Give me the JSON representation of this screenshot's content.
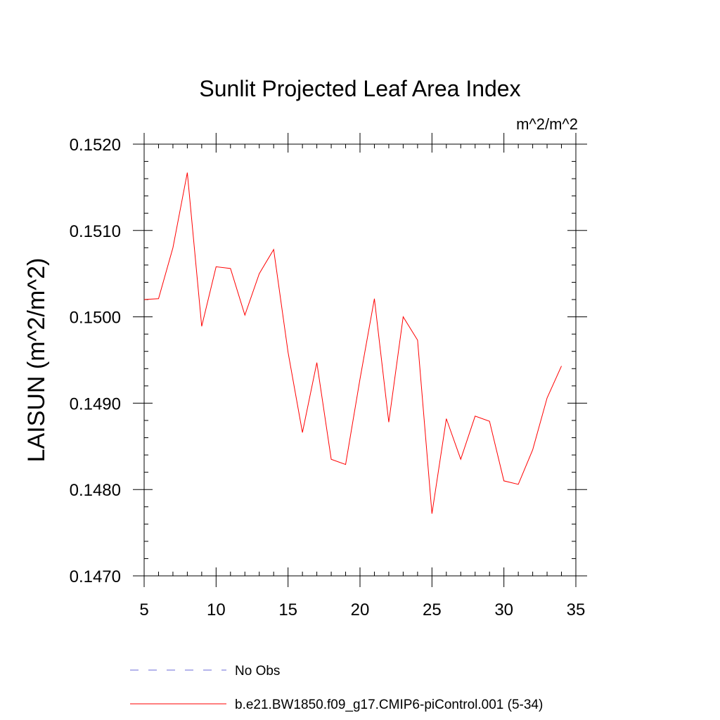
{
  "chart_data": {
    "type": "line",
    "title": "Sunlit Projected Leaf Area Index",
    "units_label": "m^2/m^2",
    "xlabel": "",
    "ylabel": "LAISUN  (m^2/m^2)",
    "xlim": [
      5,
      35
    ],
    "ylim": [
      0.147,
      0.152
    ],
    "x_ticks": [
      5,
      10,
      15,
      20,
      25,
      30,
      35
    ],
    "x_tick_labels": [
      "5",
      "10",
      "15",
      "20",
      "25",
      "30",
      "35"
    ],
    "y_ticks": [
      0.147,
      0.148,
      0.149,
      0.15,
      0.151,
      0.152
    ],
    "y_tick_labels": [
      "0.1470",
      "0.1480",
      "0.1490",
      "0.1500",
      "0.1510",
      "0.1520"
    ],
    "x_minor_step": 1,
    "y_minor_step": 0.0002,
    "series": [
      {
        "name": "No Obs",
        "color": "#6a6ad8",
        "dash": "dashed",
        "x": [],
        "values": []
      },
      {
        "name": "b.e21.BW1850.f09_g17.CMIP6-piControl.001 (5-34)",
        "color": "#ff0000",
        "dash": "solid",
        "x": [
          5,
          6,
          7,
          8,
          9,
          10,
          11,
          12,
          13,
          14,
          15,
          16,
          17,
          18,
          19,
          20,
          21,
          22,
          23,
          24,
          25,
          26,
          27,
          28,
          29,
          30,
          31,
          32,
          33,
          34
        ],
        "values": [
          0.1502,
          0.15021,
          0.1508,
          0.15167,
          0.14989,
          0.15058,
          0.15056,
          0.15002,
          0.1505,
          0.15078,
          0.14959,
          0.14866,
          0.14947,
          0.14835,
          0.14829,
          0.14928,
          0.15021,
          0.14878,
          0.15,
          0.14973,
          0.14772,
          0.14882,
          0.14835,
          0.14885,
          0.14879,
          0.1481,
          0.14806,
          0.14846,
          0.14906,
          0.14943
        ]
      }
    ]
  }
}
